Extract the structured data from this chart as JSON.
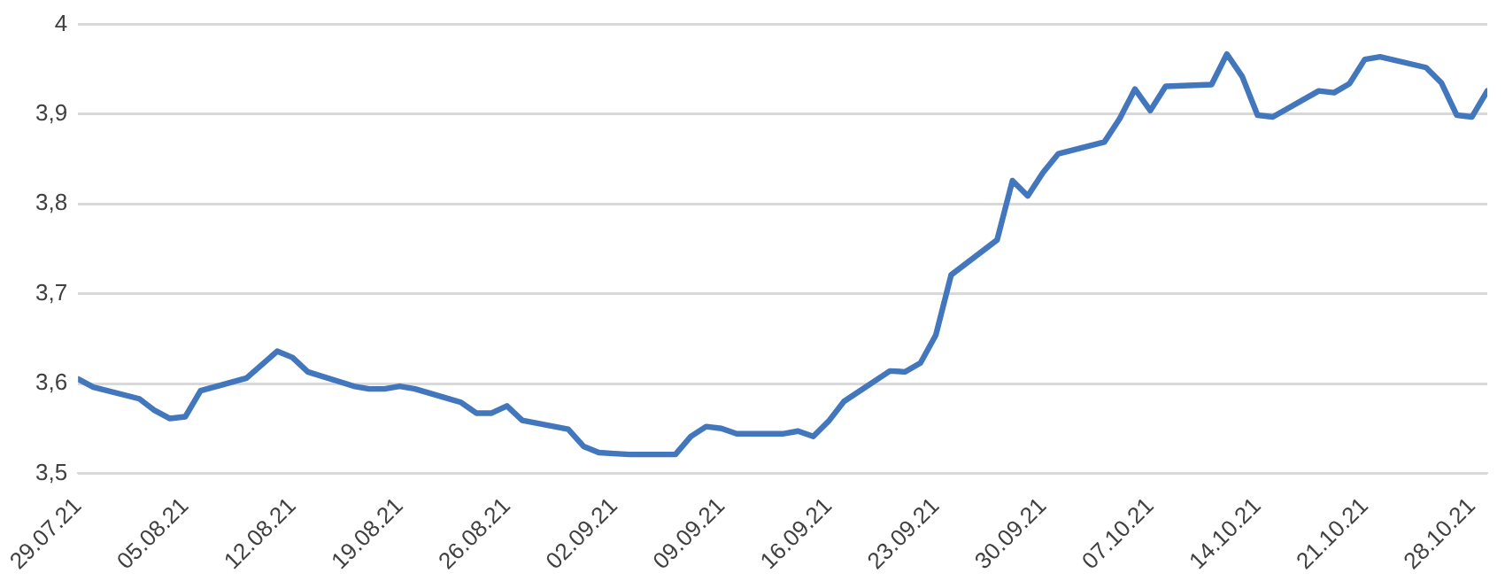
{
  "chart_data": {
    "type": "line",
    "x": [
      "--07-29",
      "--07-30",
      "--08-02",
      "--08-03",
      "--08-04",
      "--08-05",
      "--08-06",
      "--08-09",
      "--08-11",
      "--08-12",
      "--08-13",
      "--08-16",
      "--08-17",
      "--08-18",
      "--08-19",
      "--08-20",
      "--08-23",
      "--08-24",
      "--08-25",
      "--08-26",
      "--08-27",
      "--08-30",
      "--08-31",
      "--09-01",
      "--09-02",
      "--09-03",
      "--09-06",
      "--09-07",
      "--09-08",
      "--09-09",
      "--09-10",
      "--09-13",
      "--09-14",
      "--09-15",
      "--09-16",
      "--09-17",
      "--09-20",
      "--09-21",
      "--09-22",
      "--09-23",
      "--09-24",
      "--09-27",
      "--09-28",
      "--09-29",
      "--09-30",
      "--10-01",
      "--10-04",
      "--10-05",
      "--10-06",
      "--10-07",
      "--10-08",
      "--10-11",
      "--10-12",
      "--10-13",
      "--10-14",
      "--10-15",
      "--10-18",
      "--10-19",
      "--10-20",
      "--10-21",
      "--10-22",
      "--10-25",
      "--10-26",
      "--10-27",
      "--10-28",
      "--10-29"
    ],
    "series": [
      {
        "color": "#4277bd",
        "values": [
          3.605,
          3.596,
          3.583,
          3.57,
          3.561,
          3.563,
          3.592,
          3.606,
          3.636,
          3.629,
          3.613,
          3.597,
          3.594,
          3.594,
          3.597,
          3.594,
          3.579,
          3.567,
          3.567,
          3.575,
          3.559,
          3.549,
          3.53,
          3.523,
          3.522,
          3.521,
          3.521,
          3.541,
          3.552,
          3.55,
          3.544,
          3.544,
          3.547,
          3.541,
          3.558,
          3.58,
          3.614,
          3.613,
          3.623,
          3.654,
          3.721,
          3.76,
          3.826,
          3.809,
          3.835,
          3.856,
          3.869,
          3.895,
          3.928,
          3.904,
          3.931,
          3.933,
          3.967,
          3.942,
          3.899,
          3.897,
          3.926,
          3.924,
          3.934,
          3.961,
          3.964,
          3.952,
          3.935,
          3.899,
          3.897,
          3.926
        ]
      }
    ],
    "xlim": [
      "--07-29",
      "--10-29"
    ],
    "xticks": [
      {
        "value": "--07-29",
        "label": "29.07.21"
      },
      {
        "value": "--08-05",
        "label": "05.08.21"
      },
      {
        "value": "--08-12",
        "label": "12.08.21"
      },
      {
        "value": "--08-19",
        "label": "19.08.21"
      },
      {
        "value": "--08-26",
        "label": "26.08.21"
      },
      {
        "value": "--09-02",
        "label": "02.09.21"
      },
      {
        "value": "--09-09",
        "label": "09.09.21"
      },
      {
        "value": "--09-16",
        "label": "16.09.21"
      },
      {
        "value": "--09-23",
        "label": "23.09.21"
      },
      {
        "value": "--09-30",
        "label": "30.09.21"
      },
      {
        "value": "--10-07",
        "label": "07.10.21"
      },
      {
        "value": "--10-14",
        "label": "14.10.21"
      },
      {
        "value": "--10-21",
        "label": "21.10.21"
      },
      {
        "value": "--10-28",
        "label": "28.10.21"
      }
    ],
    "ylim": [
      3.5,
      4
    ],
    "yticks": [
      {
        "value": 3.5,
        "label": "3,5"
      },
      {
        "value": 3.6,
        "label": "3,6"
      },
      {
        "value": 3.7,
        "label": "3,7"
      },
      {
        "value": 3.8,
        "label": "3,8"
      },
      {
        "value": 3.9,
        "label": "3,9"
      },
      {
        "value": 4,
        "label": "4"
      }
    ],
    "grid": "y",
    "legend": false,
    "marker": "none",
    "line_style": "solid"
  }
}
